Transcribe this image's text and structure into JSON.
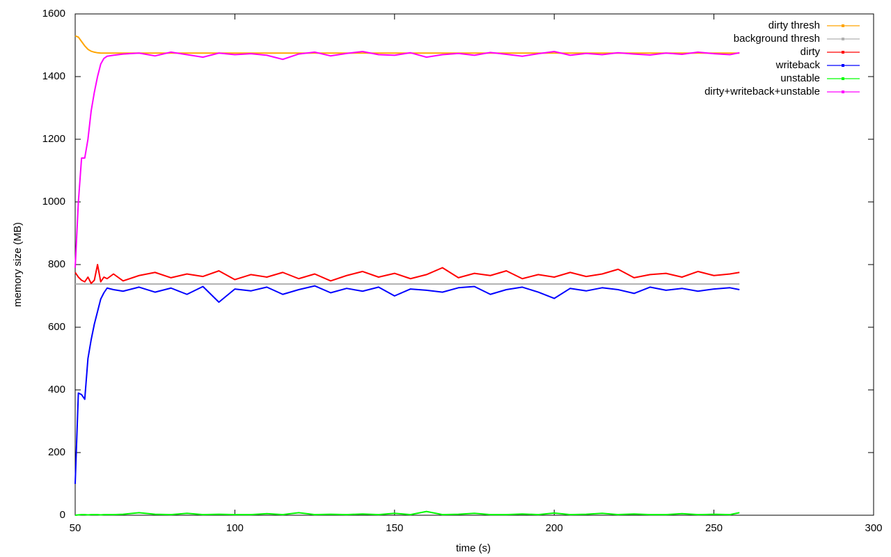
{
  "chart_data": {
    "type": "line",
    "x_label": "time (s)",
    "y_label": "memory size (MB)",
    "xlim": [
      50,
      300
    ],
    "xticks": [
      50,
      100,
      150,
      200,
      250,
      300
    ],
    "ylim": [
      0,
      1600
    ],
    "yticks": [
      0,
      200,
      400,
      600,
      800,
      1000,
      1200,
      1400,
      1600
    ],
    "legend": "top-right",
    "x": [
      50,
      51,
      52,
      53,
      54,
      55,
      56,
      57,
      58,
      59,
      60,
      62,
      65,
      70,
      75,
      80,
      85,
      90,
      95,
      100,
      105,
      110,
      115,
      120,
      125,
      130,
      135,
      140,
      145,
      150,
      155,
      160,
      165,
      170,
      175,
      180,
      185,
      190,
      195,
      200,
      205,
      210,
      215,
      220,
      225,
      230,
      235,
      240,
      245,
      250,
      255,
      258
    ],
    "series": [
      {
        "name": "dirty thresh",
        "color": "#ffa500",
        "values": [
          1530,
          1526,
          1512,
          1498,
          1487,
          1481,
          1478,
          1476,
          1475,
          1475,
          1475,
          1475,
          1475,
          1475,
          1475,
          1475,
          1475,
          1475,
          1475,
          1475,
          1475,
          1475,
          1475,
          1475,
          1475,
          1475,
          1475,
          1475,
          1475,
          1475,
          1475,
          1475,
          1475,
          1475,
          1475,
          1475,
          1475,
          1475,
          1475,
          1475,
          1475,
          1475,
          1475,
          1475,
          1475,
          1475,
          1475,
          1475,
          1475,
          1475,
          1475,
          1475
        ]
      },
      {
        "name": "background thresh",
        "color": "#b0b0b0",
        "values": [
          738,
          738,
          738,
          738,
          738,
          738,
          738,
          738,
          738,
          738,
          738,
          738,
          738,
          738,
          738,
          738,
          738,
          738,
          738,
          738,
          738,
          738,
          738,
          738,
          738,
          738,
          738,
          738,
          738,
          738,
          738,
          738,
          738,
          738,
          738,
          738,
          738,
          738,
          738,
          738,
          738,
          738,
          738,
          738,
          738,
          738,
          738,
          738,
          738,
          738,
          738,
          738
        ]
      },
      {
        "name": "dirty",
        "color": "#ff0000",
        "values": [
          775,
          760,
          750,
          745,
          760,
          740,
          750,
          800,
          745,
          760,
          755,
          770,
          748,
          765,
          775,
          758,
          770,
          762,
          780,
          752,
          768,
          760,
          775,
          755,
          770,
          748,
          765,
          778,
          760,
          772,
          755,
          768,
          790,
          758,
          772,
          765,
          780,
          755,
          768,
          760,
          775,
          762,
          770,
          785,
          758,
          768,
          772,
          760,
          778,
          765,
          770,
          775
        ]
      },
      {
        "name": "writeback",
        "color": "#0000ff",
        "values": [
          100,
          390,
          385,
          370,
          500,
          560,
          610,
          650,
          690,
          710,
          725,
          720,
          715,
          728,
          712,
          725,
          705,
          730,
          680,
          722,
          716,
          728,
          705,
          720,
          732,
          710,
          724,
          715,
          728,
          700,
          722,
          718,
          712,
          726,
          730,
          705,
          720,
          728,
          712,
          692,
          724,
          716,
          726,
          720,
          708,
          728,
          718,
          724,
          715,
          722,
          726,
          720
        ]
      },
      {
        "name": "unstable",
        "color": "#00ff00",
        "values": [
          0,
          1,
          2,
          2,
          1,
          2,
          2,
          2,
          1,
          2,
          2,
          2,
          3,
          8,
          3,
          2,
          6,
          2,
          3,
          2,
          2,
          5,
          2,
          8,
          2,
          3,
          2,
          4,
          2,
          6,
          2,
          12,
          2,
          3,
          6,
          2,
          2,
          4,
          2,
          7,
          2,
          3,
          6,
          2,
          4,
          2,
          2,
          5,
          2,
          3,
          2,
          8
        ]
      },
      {
        "name": "dirty+writeback+unstable",
        "color": "#ff00ff",
        "values": [
          790,
          1000,
          1140,
          1140,
          1200,
          1290,
          1350,
          1400,
          1440,
          1458,
          1465,
          1468,
          1472,
          1475,
          1466,
          1478,
          1470,
          1462,
          1475,
          1470,
          1473,
          1468,
          1455,
          1472,
          1478,
          1466,
          1474,
          1480,
          1470,
          1468,
          1476,
          1462,
          1470,
          1474,
          1468,
          1477,
          1471,
          1465,
          1473,
          1480,
          1468,
          1474,
          1470,
          1476,
          1472,
          1469,
          1475,
          1471,
          1478,
          1473,
          1470,
          1476
        ]
      }
    ]
  }
}
